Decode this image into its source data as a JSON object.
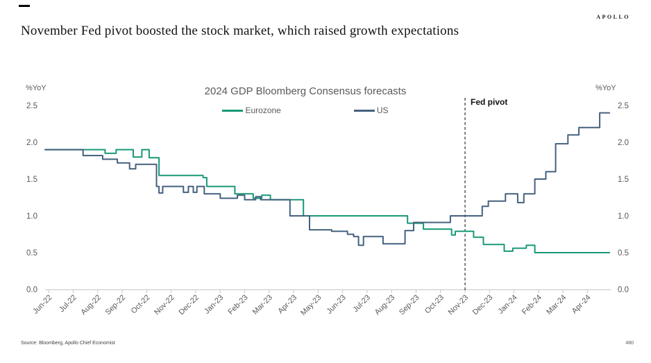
{
  "header": {
    "brand": "APOLLO",
    "title": "November Fed pivot boosted the stock market, which raised growth expectations"
  },
  "footer": {
    "source": "Source: Bloomberg, Apollo Chief Economist",
    "page": "480"
  },
  "chart_data": {
    "type": "line",
    "title": "2024 GDP Bloomberg Consensus forecasts",
    "ylabel_left": "%YoY",
    "ylabel_right": "%YoY",
    "ylim": [
      0.0,
      2.5
    ],
    "y_ticks": [
      "0.0",
      "0.5",
      "1.0",
      "1.5",
      "2.0",
      "2.5"
    ],
    "x_ticks": [
      "Jun-22",
      "Jul-22",
      "Aug-22",
      "Sep-22",
      "Oct-22",
      "Nov-22",
      "Dec-22",
      "Jan-23",
      "Feb-23",
      "Mar-23",
      "Apr-23",
      "May-23",
      "Jun-23",
      "Jul-23",
      "Aug-23",
      "Sep-23",
      "Oct-23",
      "Nov-23",
      "Dec-23",
      "Jan-24",
      "Feb-24",
      "Mar-24",
      "Apr-24"
    ],
    "grid": false,
    "legend_position": "top-center",
    "annotation": {
      "label": "Fed pivot",
      "x": 17,
      "x_tick": "Nov-23",
      "line_style": "dashed",
      "line_color": "#3f3f3f"
    },
    "axis_color": "#c6c6c6",
    "tick_label_color": "#595959",
    "series": [
      {
        "name": "Eurozone",
        "color": "#189877",
        "step": true,
        "points": [
          [
            -0.15,
            1.9
          ],
          [
            2.3,
            1.85
          ],
          [
            2.75,
            1.9
          ],
          [
            3.45,
            1.8
          ],
          [
            3.8,
            1.9
          ],
          [
            4.1,
            1.79
          ],
          [
            4.5,
            1.55
          ],
          [
            6.3,
            1.52
          ],
          [
            6.45,
            1.4
          ],
          [
            7.6,
            1.3
          ],
          [
            8.35,
            1.24
          ],
          [
            8.7,
            1.28
          ],
          [
            9.05,
            1.22
          ],
          [
            10.4,
            1.0
          ],
          [
            14.65,
            0.9
          ],
          [
            15.3,
            0.82
          ],
          [
            16.45,
            0.74
          ],
          [
            16.6,
            0.79
          ],
          [
            17.35,
            0.71
          ],
          [
            17.75,
            0.61
          ],
          [
            18.6,
            0.52
          ],
          [
            18.95,
            0.56
          ],
          [
            19.5,
            0.6
          ],
          [
            19.85,
            0.5
          ],
          [
            22.9,
            0.5
          ]
        ]
      },
      {
        "name": "US",
        "color": "#44607f",
        "step": true,
        "points": [
          [
            -0.15,
            1.9
          ],
          [
            1.4,
            1.82
          ],
          [
            2.2,
            1.77
          ],
          [
            2.8,
            1.72
          ],
          [
            3.3,
            1.64
          ],
          [
            3.55,
            1.7
          ],
          [
            4.4,
            1.4
          ],
          [
            4.5,
            1.31
          ],
          [
            4.65,
            1.4
          ],
          [
            5.5,
            1.32
          ],
          [
            5.7,
            1.4
          ],
          [
            5.9,
            1.32
          ],
          [
            6.05,
            1.4
          ],
          [
            6.35,
            1.3
          ],
          [
            7.0,
            1.24
          ],
          [
            7.7,
            1.28
          ],
          [
            8.0,
            1.22
          ],
          [
            8.45,
            1.26
          ],
          [
            8.65,
            1.22
          ],
          [
            9.85,
            1.0
          ],
          [
            10.65,
            0.81
          ],
          [
            11.55,
            0.79
          ],
          [
            12.2,
            0.75
          ],
          [
            12.45,
            0.72
          ],
          [
            12.65,
            0.6
          ],
          [
            12.85,
            0.72
          ],
          [
            13.65,
            0.62
          ],
          [
            14.55,
            0.8
          ],
          [
            14.9,
            0.91
          ],
          [
            16.4,
            1.0
          ],
          [
            17.7,
            1.13
          ],
          [
            17.95,
            1.2
          ],
          [
            18.65,
            1.3
          ],
          [
            19.15,
            1.18
          ],
          [
            19.4,
            1.3
          ],
          [
            19.85,
            1.5
          ],
          [
            20.3,
            1.6
          ],
          [
            20.7,
            1.98
          ],
          [
            21.2,
            2.1
          ],
          [
            21.65,
            2.2
          ],
          [
            22.5,
            2.4
          ],
          [
            22.9,
            2.4
          ]
        ]
      }
    ]
  }
}
